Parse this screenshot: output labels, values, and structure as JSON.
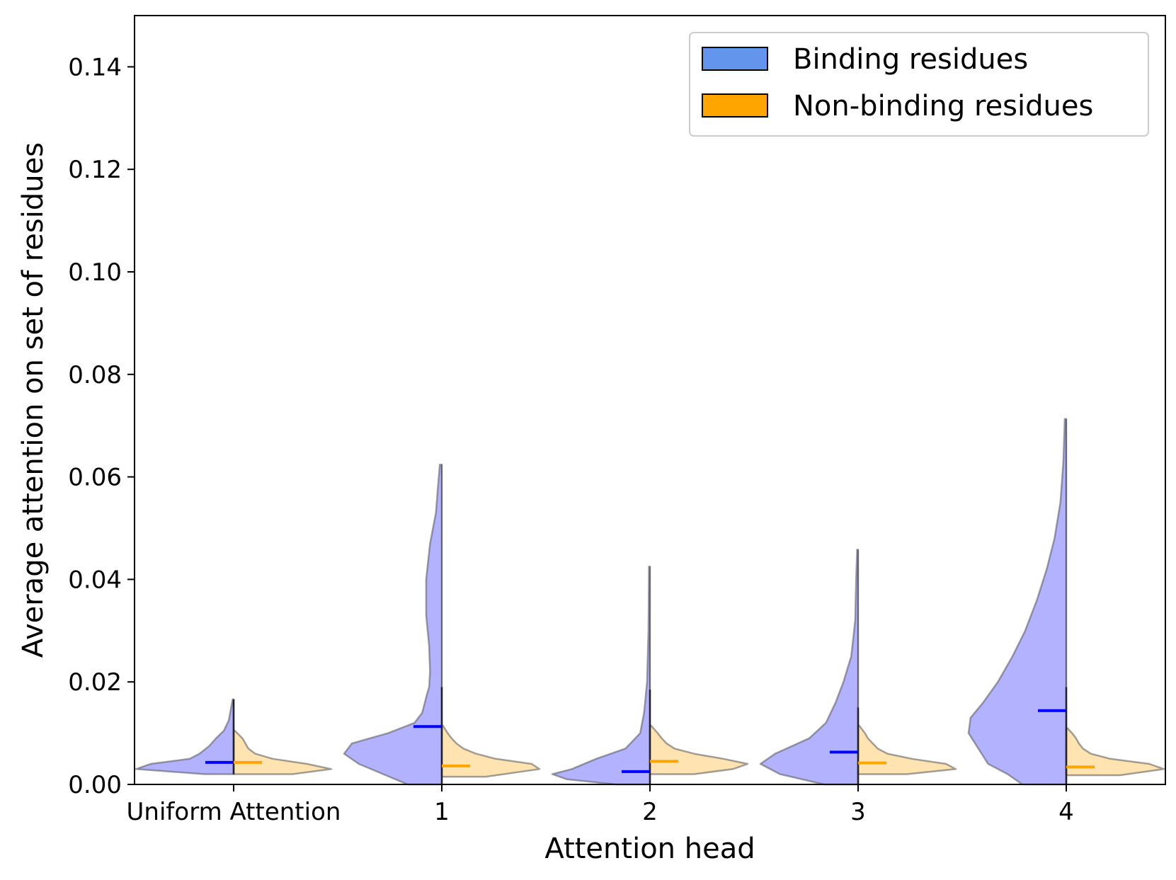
{
  "chart_data": {
    "type": "violin",
    "title": "",
    "xlabel": "Attention head",
    "ylabel": "Average attention on set of residues",
    "ylim": [
      0.0,
      0.15
    ],
    "yticks": [
      "0.00",
      "0.02",
      "0.04",
      "0.06",
      "0.08",
      "0.10",
      "0.12",
      "0.14"
    ],
    "categories": [
      "Uniform Attention",
      "1",
      "2",
      "3",
      "4"
    ],
    "legend": {
      "placement": "top-right"
    },
    "series": [
      {
        "name": "Binding residues",
        "legend_color": "#6495ED",
        "fill_color": "#0000FF",
        "mean_color": "#0000FF",
        "side": "left",
        "means": [
          0.0043,
          0.0113,
          0.0025,
          0.0063,
          0.0144
        ],
        "min": [
          0.002,
          0.0,
          0.0,
          0.0,
          0.0
        ],
        "max": [
          0.0166,
          0.0624,
          0.0425,
          0.0458,
          0.0713
        ],
        "profiles": [
          [
            [
              0.002,
              0.3
            ],
            [
              0.003,
              1.0
            ],
            [
              0.004,
              0.85
            ],
            [
              0.005,
              0.45
            ],
            [
              0.006,
              0.35
            ],
            [
              0.0075,
              0.25
            ],
            [
              0.009,
              0.18
            ],
            [
              0.0105,
              0.1
            ],
            [
              0.0125,
              0.05
            ],
            [
              0.0166,
              0.01
            ]
          ],
          [
            [
              0.0,
              0.35
            ],
            [
              0.002,
              0.6
            ],
            [
              0.004,
              0.85
            ],
            [
              0.006,
              1.0
            ],
            [
              0.008,
              0.92
            ],
            [
              0.01,
              0.55
            ],
            [
              0.012,
              0.28
            ],
            [
              0.014,
              0.2
            ],
            [
              0.017,
              0.16
            ],
            [
              0.019,
              0.13
            ],
            [
              0.022,
              0.12
            ],
            [
              0.027,
              0.13
            ],
            [
              0.033,
              0.16
            ],
            [
              0.04,
              0.16
            ],
            [
              0.047,
              0.12
            ],
            [
              0.053,
              0.06
            ],
            [
              0.058,
              0.04
            ],
            [
              0.0624,
              0.02
            ]
          ],
          [
            [
              0.0,
              0.35
            ],
            [
              0.001,
              0.85
            ],
            [
              0.002,
              1.0
            ],
            [
              0.003,
              0.8
            ],
            [
              0.005,
              0.55
            ],
            [
              0.007,
              0.25
            ],
            [
              0.01,
              0.1
            ],
            [
              0.014,
              0.06
            ],
            [
              0.02,
              0.03
            ],
            [
              0.03,
              0.015
            ],
            [
              0.0425,
              0.01
            ]
          ],
          [
            [
              0.0,
              0.35
            ],
            [
              0.002,
              0.8
            ],
            [
              0.004,
              1.0
            ],
            [
              0.006,
              0.85
            ],
            [
              0.009,
              0.5
            ],
            [
              0.012,
              0.33
            ],
            [
              0.016,
              0.23
            ],
            [
              0.02,
              0.15
            ],
            [
              0.025,
              0.07
            ],
            [
              0.032,
              0.03
            ],
            [
              0.04,
              0.02
            ],
            [
              0.0458,
              0.01
            ]
          ],
          [
            [
              0.0,
              0.45
            ],
            [
              0.002,
              0.6
            ],
            [
              0.004,
              0.8
            ],
            [
              0.007,
              0.9
            ],
            [
              0.01,
              1.0
            ],
            [
              0.013,
              0.98
            ],
            [
              0.016,
              0.85
            ],
            [
              0.02,
              0.7
            ],
            [
              0.025,
              0.55
            ],
            [
              0.03,
              0.42
            ],
            [
              0.036,
              0.3
            ],
            [
              0.042,
              0.2
            ],
            [
              0.048,
              0.12
            ],
            [
              0.055,
              0.06
            ],
            [
              0.063,
              0.03
            ],
            [
              0.0713,
              0.015
            ]
          ]
        ]
      },
      {
        "name": "Non-binding residues",
        "legend_color": "#FFA500",
        "fill_color": "#FFA500",
        "mean_color": "#FFA500",
        "side": "right",
        "means": [
          0.0043,
          0.0036,
          0.0045,
          0.0042,
          0.0034
        ],
        "min": [
          0.002,
          0.0015,
          0.002,
          0.002,
          0.0018
        ],
        "max": [
          0.0105,
          0.0115,
          0.0115,
          0.0115,
          0.011
        ],
        "profiles": [
          [
            [
              0.002,
              0.6
            ],
            [
              0.003,
              1.0
            ],
            [
              0.004,
              0.75
            ],
            [
              0.005,
              0.4
            ],
            [
              0.006,
              0.22
            ],
            [
              0.007,
              0.15
            ],
            [
              0.008,
              0.12
            ],
            [
              0.009,
              0.09
            ],
            [
              0.0105,
              0.01
            ]
          ],
          [
            [
              0.0015,
              0.45
            ],
            [
              0.003,
              1.0
            ],
            [
              0.004,
              0.92
            ],
            [
              0.005,
              0.55
            ],
            [
              0.006,
              0.35
            ],
            [
              0.007,
              0.22
            ],
            [
              0.008,
              0.15
            ],
            [
              0.009,
              0.1
            ],
            [
              0.01,
              0.06
            ],
            [
              0.0115,
              0.01
            ]
          ],
          [
            [
              0.002,
              0.45
            ],
            [
              0.003,
              0.85
            ],
            [
              0.004,
              1.0
            ],
            [
              0.005,
              0.75
            ],
            [
              0.006,
              0.45
            ],
            [
              0.007,
              0.25
            ],
            [
              0.008,
              0.17
            ],
            [
              0.009,
              0.12
            ],
            [
              0.01,
              0.08
            ],
            [
              0.0115,
              0.01
            ]
          ],
          [
            [
              0.002,
              0.5
            ],
            [
              0.003,
              1.0
            ],
            [
              0.004,
              0.9
            ],
            [
              0.005,
              0.55
            ],
            [
              0.006,
              0.3
            ],
            [
              0.007,
              0.2
            ],
            [
              0.008,
              0.15
            ],
            [
              0.009,
              0.1
            ],
            [
              0.01,
              0.07
            ],
            [
              0.0115,
              0.01
            ]
          ],
          [
            [
              0.0018,
              0.55
            ],
            [
              0.003,
              1.0
            ],
            [
              0.004,
              0.85
            ],
            [
              0.005,
              0.45
            ],
            [
              0.006,
              0.25
            ],
            [
              0.007,
              0.17
            ],
            [
              0.008,
              0.13
            ],
            [
              0.009,
              0.1
            ],
            [
              0.01,
              0.06
            ],
            [
              0.011,
              0.01
            ]
          ]
        ]
      }
    ],
    "whisker_top": [
      0.0166,
      0.019,
      0.0185,
      0.015,
      0.019
    ]
  }
}
